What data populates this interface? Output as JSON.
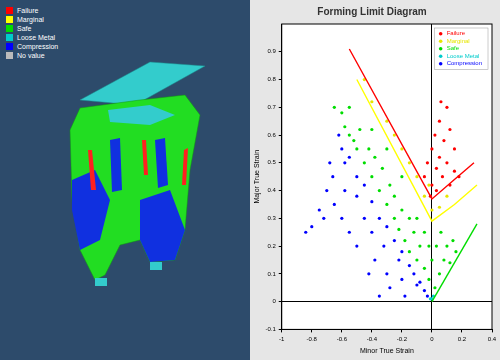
{
  "chart_data": {
    "type": "scatter",
    "title": "Forming Limit Diagram",
    "x_label": "Minor True Strain",
    "y_label": "Major True Strain",
    "xlim": [
      -1,
      0.4
    ],
    "xticks": [
      -1,
      -0.8,
      -0.6,
      -0.4,
      -0.2,
      0,
      0.2,
      0.4
    ],
    "ylim": [
      -0.1,
      1
    ],
    "yticks": [
      -0.1,
      0,
      0.1,
      0.2,
      0.3,
      0.4,
      0.5,
      0.6,
      0.7,
      0.8,
      0.9
    ],
    "grid": false,
    "legend": "upper right",
    "series": [
      {
        "name": "Failure",
        "color": "#ff0000",
        "marker": "circle",
        "values": [
          [
            -0.05,
            0.45
          ],
          [
            -0.03,
            0.5
          ],
          [
            0,
            0.55
          ],
          [
            0,
            0.42
          ],
          [
            0.02,
            0.6
          ],
          [
            0.03,
            0.48
          ],
          [
            0.05,
            0.52
          ],
          [
            0.05,
            0.65
          ],
          [
            0.07,
            0.45
          ],
          [
            0.08,
            0.58
          ],
          [
            0.1,
            0.5
          ],
          [
            0.1,
            0.7
          ],
          [
            0.12,
            0.62
          ],
          [
            0.12,
            0.42
          ],
          [
            0.15,
            0.55
          ],
          [
            0.15,
            0.47
          ],
          [
            -0.01,
            0.38
          ],
          [
            0.03,
            0.4
          ],
          [
            0.06,
            0.72
          ],
          [
            0.18,
            0.45
          ]
        ]
      },
      {
        "name": "Marginal",
        "color": "#e6e600",
        "marker": "circle",
        "values": [
          [
            -0.45,
            0.8
          ],
          [
            -0.4,
            0.72
          ],
          [
            -0.3,
            0.65
          ],
          [
            -0.25,
            0.6
          ],
          [
            -0.2,
            0.55
          ],
          [
            -0.15,
            0.5
          ],
          [
            -0.1,
            0.45
          ],
          [
            -0.05,
            0.38
          ],
          [
            0,
            0.33
          ],
          [
            0.05,
            0.34
          ],
          [
            0.1,
            0.38
          ],
          [
            -0.02,
            0.42
          ]
        ]
      },
      {
        "name": "Safe",
        "color": "#00dd00",
        "marker": "circle",
        "values": [
          [
            -0.65,
            0.7
          ],
          [
            -0.6,
            0.68
          ],
          [
            -0.58,
            0.63
          ],
          [
            -0.55,
            0.6
          ],
          [
            -0.52,
            0.58
          ],
          [
            -0.5,
            0.55
          ],
          [
            -0.48,
            0.62
          ],
          [
            -0.45,
            0.5
          ],
          [
            -0.42,
            0.55
          ],
          [
            -0.4,
            0.45
          ],
          [
            -0.38,
            0.52
          ],
          [
            -0.35,
            0.4
          ],
          [
            -0.33,
            0.48
          ],
          [
            -0.3,
            0.35
          ],
          [
            -0.28,
            0.42
          ],
          [
            -0.25,
            0.3
          ],
          [
            -0.25,
            0.38
          ],
          [
            -0.22,
            0.26
          ],
          [
            -0.2,
            0.33
          ],
          [
            -0.18,
            0.22
          ],
          [
            -0.15,
            0.3
          ],
          [
            -0.15,
            0.18
          ],
          [
            -0.12,
            0.25
          ],
          [
            -0.1,
            0.15
          ],
          [
            -0.1,
            0.3
          ],
          [
            -0.08,
            0.2
          ],
          [
            -0.05,
            0.12
          ],
          [
            -0.05,
            0.25
          ],
          [
            -0.02,
            0.08
          ],
          [
            -0.02,
            0.2
          ],
          [
            0,
            0.15
          ],
          [
            0.02,
            0.05
          ],
          [
            0.03,
            0.2
          ],
          [
            0.05,
            0.1
          ],
          [
            0.06,
            0.25
          ],
          [
            0.08,
            0.15
          ],
          [
            0.1,
            0.2
          ],
          [
            0.12,
            0.14
          ],
          [
            0.14,
            0.22
          ],
          [
            0.16,
            0.18
          ],
          [
            -0.55,
            0.7
          ],
          [
            -0.3,
            0.55
          ],
          [
            -0.2,
            0.45
          ],
          [
            -0.4,
            0.62
          ]
        ]
      },
      {
        "name": "Loose Metal",
        "color": "#00cccc",
        "marker": "circle",
        "values": [
          [
            0,
            0.01
          ],
          [
            0.01,
            0.02
          ],
          [
            -0.01,
            0.01
          ]
        ]
      },
      {
        "name": "Compression",
        "color": "#0000ff",
        "marker": "circle",
        "values": [
          [
            -0.62,
            0.6
          ],
          [
            -0.6,
            0.55
          ],
          [
            -0.58,
            0.5
          ],
          [
            -0.55,
            0.52
          ],
          [
            -0.66,
            0.45
          ],
          [
            -0.7,
            0.4
          ],
          [
            -0.75,
            0.33
          ],
          [
            -0.8,
            0.27
          ],
          [
            -0.72,
            0.3
          ],
          [
            -0.65,
            0.35
          ],
          [
            -0.5,
            0.45
          ],
          [
            -0.5,
            0.38
          ],
          [
            -0.45,
            0.42
          ],
          [
            -0.45,
            0.3
          ],
          [
            -0.4,
            0.36
          ],
          [
            -0.4,
            0.25
          ],
          [
            -0.38,
            0.15
          ],
          [
            -0.35,
            0.3
          ],
          [
            -0.32,
            0.2
          ],
          [
            -0.3,
            0.27
          ],
          [
            -0.3,
            0.1
          ],
          [
            -0.28,
            0.05
          ],
          [
            -0.25,
            0.22
          ],
          [
            -0.22,
            0.15
          ],
          [
            -0.2,
            0.18
          ],
          [
            -0.2,
            0.08
          ],
          [
            -0.18,
            0.02
          ],
          [
            -0.15,
            0.13
          ],
          [
            -0.12,
            0.1
          ],
          [
            -0.1,
            0.06
          ],
          [
            -0.08,
            0.07
          ],
          [
            -0.05,
            0.04
          ],
          [
            -0.03,
            0.02
          ],
          [
            -0.6,
            0.3
          ],
          [
            -0.55,
            0.25
          ],
          [
            -0.5,
            0.2
          ],
          [
            -0.58,
            0.4
          ],
          [
            -0.68,
            0.5
          ],
          [
            -0.42,
            0.1
          ],
          [
            -0.35,
            0.02
          ],
          [
            -0.84,
            0.25
          ]
        ]
      },
      {
        "type": "line",
        "color": "#ff0000",
        "line_style": "solid",
        "values": [
          [
            -0.55,
            0.91
          ],
          [
            0,
            0.37
          ],
          [
            0.15,
            0.44
          ],
          [
            0.28,
            0.5
          ]
        ]
      },
      {
        "type": "line",
        "color": "#ffff00",
        "line_style": "solid",
        "values": [
          [
            -0.5,
            0.8
          ],
          [
            0,
            0.29
          ],
          [
            0.15,
            0.35
          ],
          [
            0.3,
            0.42
          ]
        ]
      },
      {
        "type": "line",
        "color": "#00dd00",
        "line_style": "solid",
        "values": [
          [
            0,
            0
          ],
          [
            0.3,
            0.28
          ]
        ]
      }
    ]
  },
  "contour_legend": [
    {
      "label": "Failure",
      "color": "#ff0000"
    },
    {
      "label": "Marginal",
      "color": "#ffff00"
    },
    {
      "label": "Safe",
      "color": "#00dd00"
    },
    {
      "label": "Loose Metal",
      "color": "#00cccc"
    },
    {
      "label": "Compression",
      "color": "#0000ff"
    },
    {
      "label": "No value",
      "color": "#bbbbbb"
    }
  ]
}
